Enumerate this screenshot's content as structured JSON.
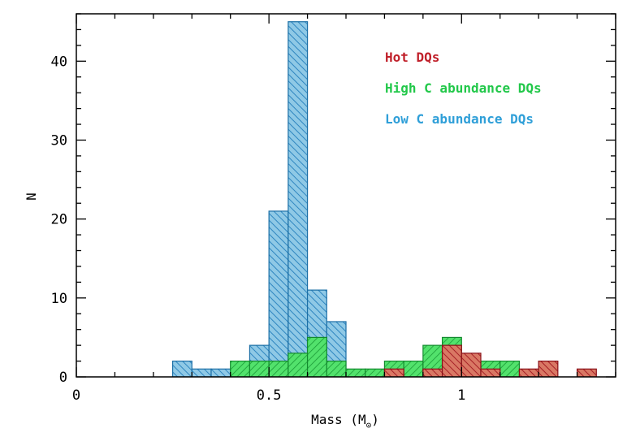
{
  "chart_data": {
    "type": "bar",
    "subtype": "overlaid-step-histogram",
    "title": "",
    "xlabel": "Mass (M",
    "xlabel_sub": "⊙",
    "xlabel_close": ")",
    "ylabel": "N",
    "xlim": [
      0,
      1.4
    ],
    "ylim": [
      0,
      46
    ],
    "x_ticks": [
      0,
      0.5,
      1
    ],
    "x_tick_labels": [
      "0",
      "0.5",
      "1"
    ],
    "y_ticks": [
      0,
      10,
      20,
      30,
      40
    ],
    "y_tick_labels": [
      "0",
      "10",
      "20",
      "30",
      "40"
    ],
    "bin_width": 0.05,
    "legend_position": "top-right",
    "series": [
      {
        "name": "Low C abundance DQs",
        "color": "#2f9fd8",
        "fill": "#8fc9e6",
        "bins": [
          {
            "x": 0.25,
            "n": 2
          },
          {
            "x": 0.3,
            "n": 1
          },
          {
            "x": 0.35,
            "n": 1
          },
          {
            "x": 0.45,
            "n": 4
          },
          {
            "x": 0.5,
            "n": 21
          },
          {
            "x": 0.55,
            "n": 45
          },
          {
            "x": 0.6,
            "n": 11
          },
          {
            "x": 0.65,
            "n": 7
          },
          {
            "x": 1.05,
            "n": 1
          }
        ]
      },
      {
        "name": "High C abundance DQs",
        "color": "#22c84a",
        "fill": "#4fe06a",
        "bins": [
          {
            "x": 0.4,
            "n": 2
          },
          {
            "x": 0.45,
            "n": 2
          },
          {
            "x": 0.5,
            "n": 2
          },
          {
            "x": 0.55,
            "n": 3
          },
          {
            "x": 0.6,
            "n": 5
          },
          {
            "x": 0.65,
            "n": 2
          },
          {
            "x": 0.7,
            "n": 1
          },
          {
            "x": 0.75,
            "n": 1
          },
          {
            "x": 0.8,
            "n": 2
          },
          {
            "x": 0.85,
            "n": 2
          },
          {
            "x": 0.9,
            "n": 4
          },
          {
            "x": 0.95,
            "n": 5
          },
          {
            "x": 1.0,
            "n": 2
          },
          {
            "x": 1.05,
            "n": 2
          },
          {
            "x": 1.1,
            "n": 2
          }
        ]
      },
      {
        "name": "Hot DQs",
        "color": "#c0202a",
        "fill": "#d46a5a",
        "bins": [
          {
            "x": 0.8,
            "n": 1
          },
          {
            "x": 0.9,
            "n": 1
          },
          {
            "x": 0.95,
            "n": 4
          },
          {
            "x": 1.0,
            "n": 3
          },
          {
            "x": 1.05,
            "n": 1
          },
          {
            "x": 1.15,
            "n": 1
          },
          {
            "x": 1.2,
            "n": 2
          },
          {
            "x": 1.3,
            "n": 1
          }
        ]
      }
    ],
    "legend_order": [
      "Hot DQs",
      "High C abundance DQs",
      "Low C abundance DQs"
    ]
  }
}
